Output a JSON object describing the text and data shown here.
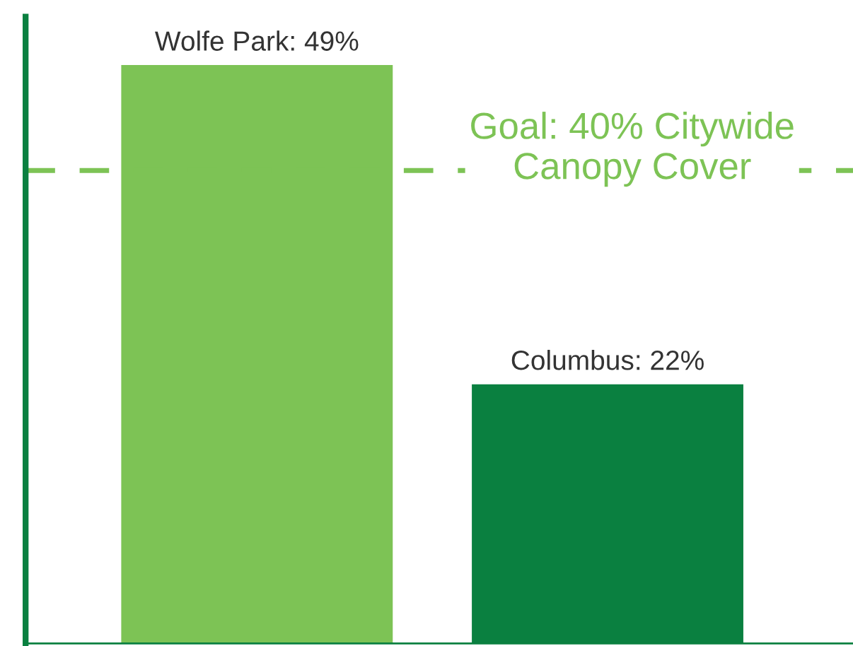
{
  "chart_data": {
    "type": "bar",
    "categories": [
      null,
      null
    ],
    "values": [
      49,
      22
    ],
    "colors": [
      "#7dc355",
      "#0a8040"
    ],
    "value_labels": [
      "Wolfe Park: 49%",
      "Columbus: 22%"
    ],
    "ylim": [
      0,
      53
    ],
    "tick_labels": false,
    "grid": false,
    "ref_lines": [
      {
        "axis": "y",
        "value": 40,
        "label": "Goal: 40% Citywide\nCanopy Cover",
        "color": "#7dc355",
        "line_style": "dashed"
      }
    ]
  }
}
